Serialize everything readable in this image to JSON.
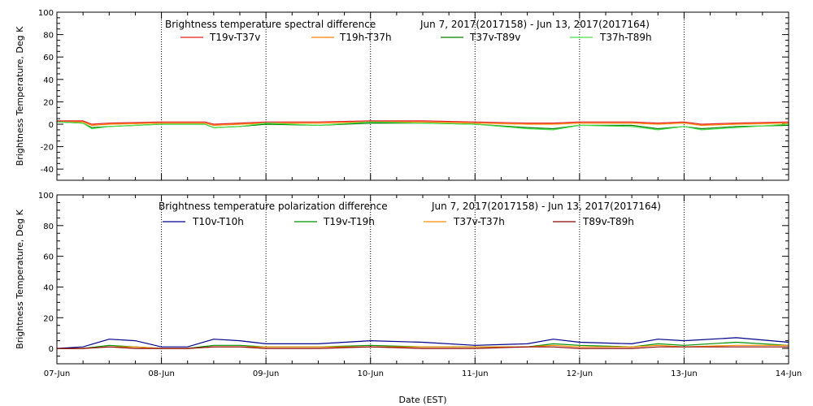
{
  "chart_data": [
    {
      "type": "line",
      "title": "Brightness temperature spectral difference",
      "subtitle": "Jun  7, 2017(2017158) - Jun 13, 2017(2017164)",
      "ylabel": "Brightness Temperature, Deg K",
      "xlabel": "",
      "ylim": [
        -50,
        100
      ],
      "yticks": [
        -40,
        -20,
        0,
        20,
        40,
        60,
        80,
        100
      ],
      "xlim": [
        "2017-06-07",
        "2017-06-14"
      ],
      "x": [
        "2017-06-07 00:00",
        "2017-06-07 06:00",
        "2017-06-07 08:00",
        "2017-06-07 12:00",
        "2017-06-08 00:00",
        "2017-06-08 10:00",
        "2017-06-08 12:00",
        "2017-06-08 18:00",
        "2017-06-09 00:00",
        "2017-06-09 12:00",
        "2017-06-10 00:00",
        "2017-06-10 12:00",
        "2017-06-11 00:00",
        "2017-06-11 12:00",
        "2017-06-11 18:00",
        "2017-06-12 00:00",
        "2017-06-12 12:00",
        "2017-06-12 18:00",
        "2017-06-13 00:00",
        "2017-06-13 04:00",
        "2017-06-13 12:00",
        "2017-06-14 00:00"
      ],
      "series": [
        {
          "name": "T19v-T37v",
          "color": "#e41a1c",
          "values": [
            3,
            3,
            0,
            1,
            2,
            2,
            0,
            1,
            2,
            2,
            3,
            3,
            2,
            1,
            1,
            2,
            2,
            1,
            2,
            0,
            1,
            2
          ]
        },
        {
          "name": "T19h-T37h",
          "color": "#ff7f00",
          "values": [
            2,
            2,
            -1,
            0,
            1,
            1,
            -1,
            0,
            1,
            1,
            2,
            2,
            1,
            0,
            0,
            1,
            1,
            0,
            1,
            -1,
            0,
            1
          ]
        },
        {
          "name": "T37v-T89v",
          "color": "#008000",
          "values": [
            2,
            1,
            -3,
            -2,
            0,
            0,
            -3,
            -2,
            0,
            -1,
            1,
            1,
            0,
            -3,
            -4,
            -1,
            -1,
            -4,
            -2,
            -4,
            -2,
            -1
          ]
        },
        {
          "name": "T37h-T89h",
          "color": "#4ddf4d",
          "values": [
            2,
            1,
            -4,
            -2,
            0,
            0,
            -3,
            -2,
            1,
            -1,
            2,
            1,
            0,
            -4,
            -5,
            -1,
            -2,
            -5,
            -2,
            -5,
            -3,
            0
          ]
        }
      ]
    },
    {
      "type": "line",
      "title": "Brightness temperature polarization difference",
      "subtitle": "Jun  7, 2017(2017158) - Jun 13, 2017(2017164)",
      "ylabel": "Brightness Temperature, Deg K",
      "xlabel": "Date (EST)",
      "ylim": [
        -10,
        100
      ],
      "yticks": [
        0,
        20,
        40,
        60,
        80,
        100
      ],
      "xlim": [
        "2017-06-07",
        "2017-06-14"
      ],
      "xticks": [
        "07-Jun",
        "08-Jun",
        "09-Jun",
        "10-Jun",
        "11-Jun",
        "12-Jun",
        "13-Jun",
        "14-Jun"
      ],
      "x": [
        "2017-06-07 00:00",
        "2017-06-07 06:00",
        "2017-06-07 12:00",
        "2017-06-07 18:00",
        "2017-06-08 00:00",
        "2017-06-08 06:00",
        "2017-06-08 12:00",
        "2017-06-08 18:00",
        "2017-06-09 00:00",
        "2017-06-09 12:00",
        "2017-06-10 00:00",
        "2017-06-10 12:00",
        "2017-06-11 00:00",
        "2017-06-11 12:00",
        "2017-06-11 18:00",
        "2017-06-12 00:00",
        "2017-06-12 12:00",
        "2017-06-12 18:00",
        "2017-06-13 00:00",
        "2017-06-13 12:00",
        "2017-06-14 00:00"
      ],
      "series": [
        {
          "name": "T10v-T10h",
          "color": "#00008b",
          "values": [
            0,
            1,
            6,
            5,
            1,
            1,
            6,
            5,
            3,
            3,
            5,
            4,
            2,
            3,
            6,
            4,
            3,
            6,
            5,
            7,
            4
          ]
        },
        {
          "name": "T19v-T19h",
          "color": "#009000",
          "values": [
            0,
            0,
            2,
            1,
            0,
            0,
            2,
            2,
            1,
            1,
            2,
            1,
            1,
            1,
            3,
            2,
            1,
            3,
            2,
            4,
            2
          ]
        },
        {
          "name": "T37v-T37h",
          "color": "#ff8c00",
          "values": [
            0,
            0,
            1,
            1,
            0,
            0,
            1,
            1,
            1,
            1,
            1,
            1,
            1,
            1,
            2,
            1,
            1,
            2,
            1,
            2,
            2
          ]
        },
        {
          "name": "T89v-T89h",
          "color": "#8b0000",
          "values": [
            0,
            0,
            1,
            0,
            0,
            0,
            1,
            1,
            0,
            0,
            1,
            0,
            0,
            1,
            1,
            0,
            0,
            1,
            1,
            1,
            1
          ]
        }
      ]
    }
  ]
}
